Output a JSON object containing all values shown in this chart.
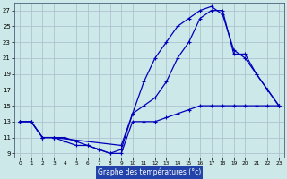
{
  "title": "Graphe des températures (°c)",
  "bg_color": "#cce8e8",
  "line_color": "#0000bb",
  "grid_color": "#aabbcc",
  "xlabel_bg": "#2244aa",
  "xlabel_fg": "#ffffff",
  "xlim": [
    -0.5,
    23.5
  ],
  "ylim": [
    8.5,
    28
  ],
  "xticks": [
    0,
    1,
    2,
    3,
    4,
    5,
    6,
    7,
    8,
    9,
    10,
    11,
    12,
    13,
    14,
    15,
    16,
    17,
    18,
    19,
    20,
    21,
    22,
    23
  ],
  "yticks": [
    9,
    11,
    13,
    15,
    17,
    19,
    21,
    23,
    25,
    27
  ],
  "line1_x": [
    0,
    1,
    2,
    3,
    4,
    5,
    6,
    7,
    8,
    9,
    10,
    11,
    12,
    13,
    14,
    15,
    16,
    17,
    18,
    19,
    20,
    21,
    22,
    23
  ],
  "line1_y": [
    13,
    13,
    11,
    11,
    10.5,
    10,
    10,
    9.5,
    9,
    9,
    13,
    13,
    13,
    13.5,
    14,
    14.5,
    15,
    15,
    15,
    15,
    15,
    15,
    15,
    15
  ],
  "line2_x": [
    0,
    1,
    2,
    3,
    4,
    5,
    6,
    7,
    8,
    9,
    10,
    11,
    12,
    13,
    14,
    15,
    16,
    17,
    18,
    19,
    20,
    21,
    22,
    23
  ],
  "line2_y": [
    13,
    13,
    11,
    11,
    11,
    10.5,
    10,
    9.5,
    9,
    9.5,
    14,
    18,
    21,
    23,
    25,
    26,
    27,
    27.5,
    26.5,
    22,
    21,
    19,
    17,
    15
  ],
  "line3_x": [
    0,
    1,
    2,
    3,
    9,
    10,
    11,
    12,
    13,
    14,
    15,
    16,
    17,
    18,
    19,
    20,
    21,
    22,
    23
  ],
  "line3_y": [
    13,
    13,
    11,
    11,
    10,
    14,
    15,
    16,
    18,
    21,
    23,
    26,
    27,
    27,
    21.5,
    21.5,
    19,
    17,
    15
  ]
}
